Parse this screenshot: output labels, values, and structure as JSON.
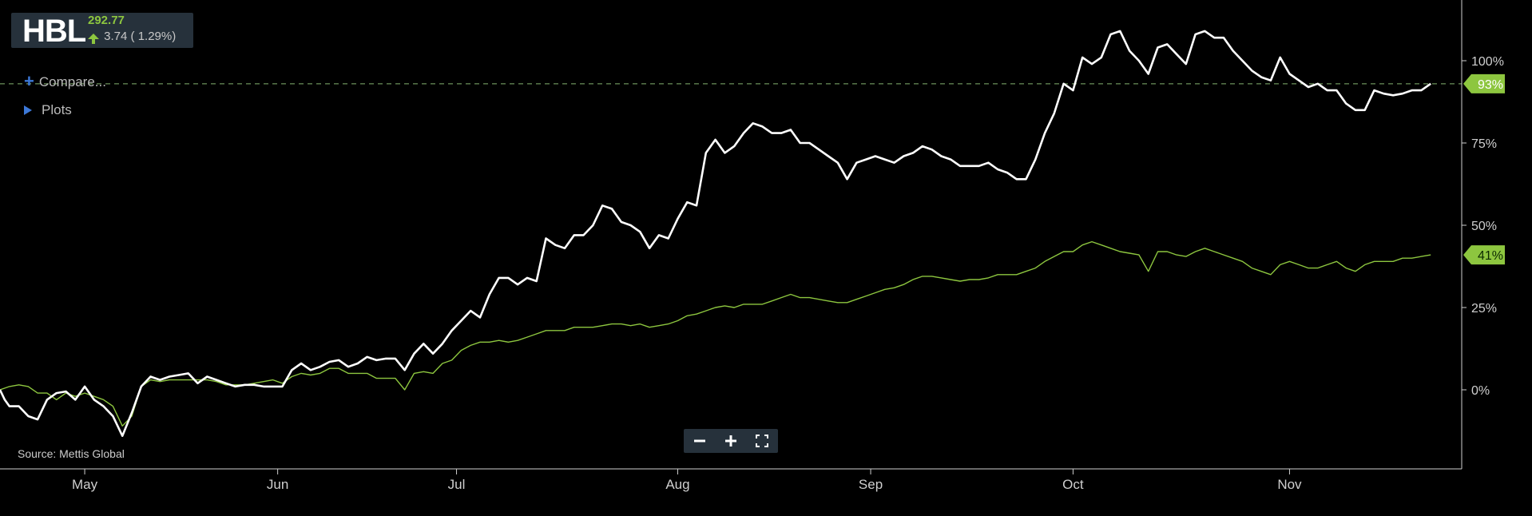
{
  "header": {
    "symbol": "HBL",
    "price": "292.77",
    "change": "3.74 ( 1.29%)"
  },
  "controls": {
    "compare_label": "Compare...",
    "plots_label": "Plots",
    "zoom_out": "−",
    "zoom_in": "+"
  },
  "source_text": "Source: Mettis Global",
  "colors": {
    "background": "#000000",
    "primary_line": "#ffffff",
    "compare_line": "#8dc63f",
    "last_label_bg": "#8dc63f",
    "panel": "#26313b",
    "accent_blue": "#3c78d8"
  },
  "icons": {
    "compare": "plus-icon",
    "plots": "triangle-right-icon",
    "zoom_out": "minus-icon",
    "zoom_in": "plus-icon",
    "fullscreen": "expand-icon"
  },
  "chart_data": {
    "type": "line",
    "y_unit": "percent change",
    "ylim": [
      -20,
      118
    ],
    "yticks": [
      0,
      25,
      50,
      75,
      100
    ],
    "ytick_labels": [
      "0%",
      "25%",
      "50%",
      "75%",
      "100%"
    ],
    "x_month_labels": [
      {
        "label": "May",
        "x": 18
      },
      {
        "label": "Jun",
        "x": 59
      },
      {
        "label": "Jul",
        "x": 97
      },
      {
        "label": "Aug",
        "x": 144
      },
      {
        "label": "Sep",
        "x": 185
      },
      {
        "label": "Oct",
        "x": 228
      },
      {
        "label": "Nov",
        "x": 274
      }
    ],
    "x_range": [
      0,
      306
    ],
    "reference_line": {
      "value": 93,
      "style": "dashed"
    },
    "series": [
      {
        "color": "#ffffff",
        "last_label": "93%",
        "points": [
          [
            0,
            0
          ],
          [
            1,
            -3
          ],
          [
            2,
            -5
          ],
          [
            4,
            -5
          ],
          [
            6,
            -8
          ],
          [
            8,
            -9
          ],
          [
            10,
            -3
          ],
          [
            12,
            -1
          ],
          [
            14,
            -0.5
          ],
          [
            16,
            -3
          ],
          [
            18,
            1
          ],
          [
            20,
            -3
          ],
          [
            22,
            -5
          ],
          [
            24,
            -8
          ],
          [
            26,
            -14
          ],
          [
            28,
            -7
          ],
          [
            30,
            1
          ],
          [
            32,
            4
          ],
          [
            34,
            3
          ],
          [
            36,
            4
          ],
          [
            38,
            4.5
          ],
          [
            40,
            5
          ],
          [
            42,
            2
          ],
          [
            44,
            4
          ],
          [
            46,
            3
          ],
          [
            48,
            2
          ],
          [
            50,
            1
          ],
          [
            52,
            1.5
          ],
          [
            54,
            1.5
          ],
          [
            56,
            1
          ],
          [
            58,
            1
          ],
          [
            60,
            1
          ],
          [
            62,
            6
          ],
          [
            64,
            8
          ],
          [
            66,
            6
          ],
          [
            68,
            7
          ],
          [
            70,
            8.5
          ],
          [
            72,
            9
          ],
          [
            74,
            7
          ],
          [
            76,
            8
          ],
          [
            78,
            10
          ],
          [
            80,
            9
          ],
          [
            82,
            9.5
          ],
          [
            84,
            9.5
          ],
          [
            86,
            6
          ],
          [
            88,
            11
          ],
          [
            90,
            14
          ],
          [
            92,
            11
          ],
          [
            94,
            14
          ],
          [
            96,
            18
          ],
          [
            98,
            21
          ],
          [
            100,
            24
          ],
          [
            102,
            22
          ],
          [
            104,
            29
          ],
          [
            106,
            34
          ],
          [
            108,
            34
          ],
          [
            110,
            32
          ],
          [
            112,
            34
          ],
          [
            114,
            33
          ],
          [
            116,
            46
          ],
          [
            118,
            44
          ],
          [
            120,
            43
          ],
          [
            122,
            47
          ],
          [
            124,
            47
          ],
          [
            126,
            50
          ],
          [
            128,
            56
          ],
          [
            130,
            55
          ],
          [
            132,
            51
          ],
          [
            134,
            50
          ],
          [
            136,
            48
          ],
          [
            138,
            43
          ],
          [
            140,
            47
          ],
          [
            142,
            46
          ],
          [
            144,
            52
          ],
          [
            146,
            57
          ],
          [
            148,
            56
          ],
          [
            150,
            72
          ],
          [
            152,
            76
          ],
          [
            154,
            72
          ],
          [
            156,
            74
          ],
          [
            158,
            78
          ],
          [
            160,
            81
          ],
          [
            162,
            80
          ],
          [
            164,
            78
          ],
          [
            166,
            78
          ],
          [
            168,
            79
          ],
          [
            170,
            75
          ],
          [
            172,
            75
          ],
          [
            174,
            73
          ],
          [
            176,
            71
          ],
          [
            178,
            69
          ],
          [
            180,
            64
          ],
          [
            182,
            69
          ],
          [
            184,
            70
          ],
          [
            186,
            71
          ],
          [
            188,
            70
          ],
          [
            190,
            69
          ],
          [
            192,
            71
          ],
          [
            194,
            72
          ],
          [
            196,
            74
          ],
          [
            198,
            73
          ],
          [
            200,
            71
          ],
          [
            202,
            70
          ],
          [
            204,
            68
          ],
          [
            206,
            68
          ],
          [
            208,
            68
          ],
          [
            210,
            69
          ],
          [
            212,
            67
          ],
          [
            214,
            66
          ],
          [
            216,
            64
          ],
          [
            218,
            64
          ],
          [
            220,
            70
          ],
          [
            222,
            78
          ],
          [
            224,
            84
          ],
          [
            226,
            93
          ],
          [
            228,
            91
          ],
          [
            230,
            101
          ],
          [
            232,
            99
          ],
          [
            234,
            101
          ],
          [
            236,
            108
          ],
          [
            238,
            109
          ],
          [
            240,
            103
          ],
          [
            242,
            100
          ],
          [
            244,
            96
          ],
          [
            246,
            104
          ],
          [
            248,
            105
          ],
          [
            250,
            102
          ],
          [
            252,
            99
          ],
          [
            254,
            108
          ],
          [
            256,
            109
          ],
          [
            258,
            107
          ],
          [
            260,
            107
          ],
          [
            262,
            103
          ],
          [
            264,
            100
          ],
          [
            266,
            97
          ],
          [
            268,
            95
          ],
          [
            270,
            94
          ],
          [
            272,
            101
          ],
          [
            274,
            96
          ],
          [
            276,
            94
          ],
          [
            278,
            92
          ],
          [
            280,
            93
          ],
          [
            282,
            91
          ],
          [
            284,
            91
          ],
          [
            286,
            87
          ],
          [
            288,
            85
          ],
          [
            290,
            85
          ],
          [
            292,
            91
          ],
          [
            294,
            90
          ],
          [
            296,
            89.5
          ],
          [
            298,
            90
          ],
          [
            300,
            91
          ],
          [
            302,
            91
          ],
          [
            304,
            93
          ]
        ]
      },
      {
        "color": "#8dc63f",
        "last_label": "41%",
        "points": [
          [
            0,
            0
          ],
          [
            2,
            1
          ],
          [
            4,
            1.5
          ],
          [
            6,
            1
          ],
          [
            8,
            -1
          ],
          [
            10,
            -1
          ],
          [
            12,
            -3
          ],
          [
            14,
            -1
          ],
          [
            16,
            -2
          ],
          [
            18,
            -1
          ],
          [
            20,
            -2
          ],
          [
            22,
            -3
          ],
          [
            24,
            -5
          ],
          [
            26,
            -11
          ],
          [
            28,
            -8
          ],
          [
            30,
            1
          ],
          [
            32,
            3
          ],
          [
            34,
            2.5
          ],
          [
            36,
            3
          ],
          [
            38,
            3
          ],
          [
            40,
            3
          ],
          [
            42,
            3
          ],
          [
            44,
            3
          ],
          [
            46,
            2.5
          ],
          [
            48,
            1.5
          ],
          [
            50,
            1.5
          ],
          [
            52,
            1.5
          ],
          [
            54,
            2
          ],
          [
            56,
            2.5
          ],
          [
            58,
            3
          ],
          [
            60,
            2
          ],
          [
            62,
            4
          ],
          [
            64,
            5
          ],
          [
            66,
            4.5
          ],
          [
            68,
            5
          ],
          [
            70,
            6.5
          ],
          [
            72,
            6.5
          ],
          [
            74,
            5
          ],
          [
            76,
            5
          ],
          [
            78,
            5
          ],
          [
            80,
            3.5
          ],
          [
            82,
            3.5
          ],
          [
            84,
            3.5
          ],
          [
            86,
            0
          ],
          [
            88,
            5
          ],
          [
            90,
            5.5
          ],
          [
            92,
            5
          ],
          [
            94,
            8
          ],
          [
            96,
            9
          ],
          [
            98,
            12
          ],
          [
            100,
            13.5
          ],
          [
            102,
            14.5
          ],
          [
            104,
            14.5
          ],
          [
            106,
            15
          ],
          [
            108,
            14.5
          ],
          [
            110,
            15
          ],
          [
            112,
            16
          ],
          [
            114,
            17
          ],
          [
            116,
            18
          ],
          [
            118,
            18
          ],
          [
            120,
            18
          ],
          [
            122,
            19
          ],
          [
            124,
            19
          ],
          [
            126,
            19
          ],
          [
            128,
            19.5
          ],
          [
            130,
            20
          ],
          [
            132,
            20
          ],
          [
            134,
            19.5
          ],
          [
            136,
            20
          ],
          [
            138,
            19
          ],
          [
            140,
            19.5
          ],
          [
            142,
            20
          ],
          [
            144,
            21
          ],
          [
            146,
            22.5
          ],
          [
            148,
            23
          ],
          [
            150,
            24
          ],
          [
            152,
            25
          ],
          [
            154,
            25.5
          ],
          [
            156,
            25
          ],
          [
            158,
            26
          ],
          [
            160,
            26
          ],
          [
            162,
            26
          ],
          [
            164,
            27
          ],
          [
            166,
            28
          ],
          [
            168,
            29
          ],
          [
            170,
            28
          ],
          [
            172,
            28
          ],
          [
            174,
            27.5
          ],
          [
            176,
            27
          ],
          [
            178,
            26.5
          ],
          [
            180,
            26.5
          ],
          [
            182,
            27.5
          ],
          [
            184,
            28.5
          ],
          [
            186,
            29.5
          ],
          [
            188,
            30.5
          ],
          [
            190,
            31
          ],
          [
            192,
            32
          ],
          [
            194,
            33.5
          ],
          [
            196,
            34.5
          ],
          [
            198,
            34.5
          ],
          [
            200,
            34
          ],
          [
            202,
            33.5
          ],
          [
            204,
            33
          ],
          [
            206,
            33.5
          ],
          [
            208,
            33.5
          ],
          [
            210,
            34
          ],
          [
            212,
            35
          ],
          [
            214,
            35
          ],
          [
            216,
            35
          ],
          [
            218,
            36
          ],
          [
            220,
            37
          ],
          [
            222,
            39
          ],
          [
            224,
            40.5
          ],
          [
            226,
            42
          ],
          [
            228,
            42
          ],
          [
            230,
            44
          ],
          [
            232,
            45
          ],
          [
            234,
            44
          ],
          [
            236,
            43
          ],
          [
            238,
            42
          ],
          [
            240,
            41.5
          ],
          [
            242,
            41
          ],
          [
            244,
            36
          ],
          [
            246,
            42
          ],
          [
            248,
            42
          ],
          [
            250,
            41
          ],
          [
            252,
            40.5
          ],
          [
            254,
            42
          ],
          [
            256,
            43
          ],
          [
            258,
            42
          ],
          [
            260,
            41
          ],
          [
            262,
            40
          ],
          [
            264,
            39
          ],
          [
            266,
            37
          ],
          [
            268,
            36
          ],
          [
            270,
            35
          ],
          [
            272,
            38
          ],
          [
            274,
            39
          ],
          [
            276,
            38
          ],
          [
            278,
            37
          ],
          [
            280,
            37
          ],
          [
            282,
            38
          ],
          [
            284,
            39
          ],
          [
            286,
            37
          ],
          [
            288,
            36
          ],
          [
            290,
            38
          ],
          [
            292,
            39
          ],
          [
            294,
            39
          ],
          [
            296,
            39
          ],
          [
            298,
            40
          ],
          [
            300,
            40
          ],
          [
            302,
            40.5
          ],
          [
            304,
            41
          ]
        ]
      }
    ]
  }
}
